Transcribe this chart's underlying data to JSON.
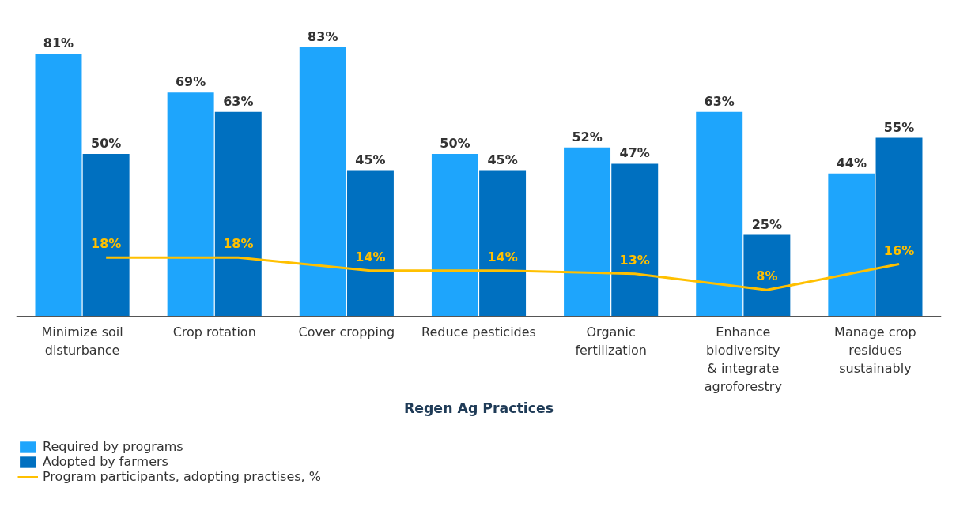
{
  "chart_data": {
    "type": "bar",
    "xlabel": "Regen Ag Practices",
    "categories": [
      "Minimize soil\ndisturbance",
      "Crop rotation",
      "Cover cropping",
      "Reduce pesticides",
      "Organic\nfertilization",
      "Enhance\nbiodiversity\n& integrate\nagroforestry",
      "Manage crop\nresidues\nsustainably"
    ],
    "series": [
      {
        "name": "Required by programs",
        "color": "#1ea5fc",
        "values": [
          81,
          69,
          83,
          50,
          52,
          63,
          44
        ],
        "value_labels": [
          "81%",
          "69%",
          "83%",
          "50%",
          "52%",
          "63%",
          "44%"
        ]
      },
      {
        "name": "Adopted by farmers",
        "color": "#0070c0",
        "values": [
          50,
          63,
          45,
          45,
          47,
          25,
          55
        ],
        "value_labels": [
          "50%",
          "63%",
          "45%",
          "45%",
          "47%",
          "25%",
          "55%"
        ]
      },
      {
        "name": "Program participants, adopting practises, %",
        "type": "line",
        "color": "#ffc000",
        "values": [
          18,
          18,
          14,
          14,
          13,
          8,
          16
        ],
        "value_labels": [
          "18%",
          "18%",
          "14%",
          "14%",
          "13%",
          "8%",
          "16%"
        ]
      }
    ],
    "legend": "bottom left"
  }
}
